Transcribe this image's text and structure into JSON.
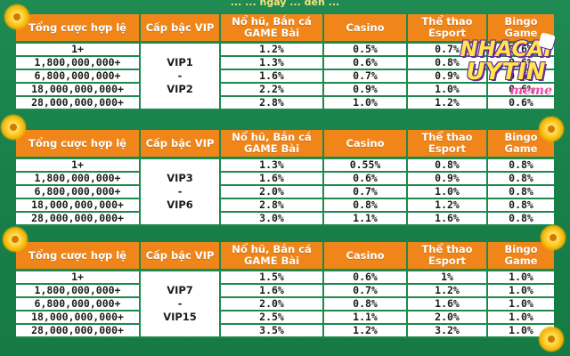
{
  "header_text": "... ... ngày ... đến ... ",
  "headers": [
    "Tổng cược hợp lệ",
    "Cấp bậc VIP",
    "Nổ hũ, Bắn cá GAME Bài",
    "Casino",
    "Thể thao Esport",
    "Bingo Game"
  ],
  "tables": [
    {
      "vip_top": "VIP1",
      "vip_mid": "-",
      "vip_bottom": "VIP2",
      "rows": [
        {
          "bet": "1+",
          "slot": "1.2%",
          "casino": "0.5%",
          "sport": "0.7%",
          "bingo": "0.6%"
        },
        {
          "bet": "1,800,000,000+",
          "slot": "1.3%",
          "casino": "0.6%",
          "sport": "0.8%",
          "bingo": "0.6%"
        },
        {
          "bet": "6,800,000,000+",
          "slot": "1.6%",
          "casino": "0.7%",
          "sport": "0.9%",
          "bingo": "0.6%"
        },
        {
          "bet": "18,000,000,000+",
          "slot": "2.2%",
          "casino": "0.9%",
          "sport": "1.0%",
          "bingo": "0.6%"
        },
        {
          "bet": "28,000,000,000+",
          "slot": "2.8%",
          "casino": "1.0%",
          "sport": "1.2%",
          "bingo": "0.6%"
        }
      ]
    },
    {
      "vip_top": "VIP3",
      "vip_mid": "-",
      "vip_bottom": "VIP6",
      "rows": [
        {
          "bet": "1+",
          "slot": "1.3%",
          "casino": "0.55%",
          "sport": "0.8%",
          "bingo": "0.8%"
        },
        {
          "bet": "1,800,000,000+",
          "slot": "1.6%",
          "casino": "0.6%",
          "sport": "0.9%",
          "bingo": "0.8%"
        },
        {
          "bet": "6,800,000,000+",
          "slot": "2.0%",
          "casino": "0.7%",
          "sport": "1.0%",
          "bingo": "0.8%"
        },
        {
          "bet": "18,000,000,000+",
          "slot": "2.8%",
          "casino": "0.8%",
          "sport": "1.2%",
          "bingo": "0.8%"
        },
        {
          "bet": "28,000,000,000+",
          "slot": "3.0%",
          "casino": "1.1%",
          "sport": "1.6%",
          "bingo": "0.8%"
        }
      ]
    },
    {
      "vip_top": "VIP7",
      "vip_mid": "-",
      "vip_bottom": "VIP15",
      "rows": [
        {
          "bet": "1+",
          "slot": "1.5%",
          "casino": "0.6%",
          "sport": "1%",
          "bingo": "1.0%"
        },
        {
          "bet": "1,800,000,000+",
          "slot": "1.6%",
          "casino": "0.7%",
          "sport": "1.2%",
          "bingo": "1.0%"
        },
        {
          "bet": "6,800,000,000+",
          "slot": "2.0%",
          "casino": "0.8%",
          "sport": "1.6%",
          "bingo": "1.0%"
        },
        {
          "bet": "18,000,000,000+",
          "slot": "2.5%",
          "casino": "1.1%",
          "sport": "2.0%",
          "bingo": "1.0%"
        },
        {
          "bet": "28,000,000,000+",
          "slot": "3.5%",
          "casino": "1.2%",
          "sport": "3.2%",
          "bingo": "1.0%"
        }
      ]
    }
  ],
  "logo": {
    "line1": "NHACAI",
    "line2": "UYTIN",
    "line3": "meme"
  },
  "colors": {
    "background": "#1b8a4c",
    "header": "#f0861a",
    "cell": "#ffffff",
    "logo_text": "#ffe64a"
  }
}
